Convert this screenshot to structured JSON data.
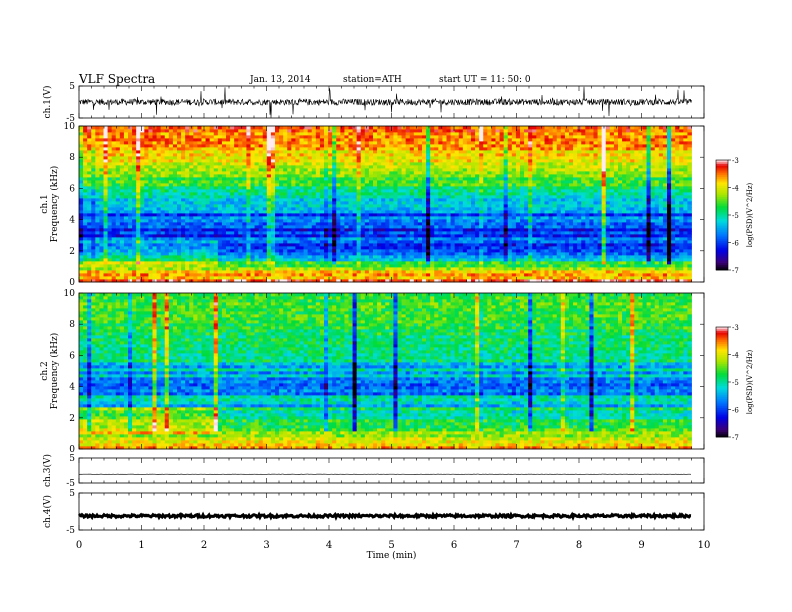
{
  "header": {
    "title": "VLF  Spectra",
    "date": "Jan. 13, 2014",
    "station": "station=ATH",
    "start": "start  UT  =    11: 50: 0"
  },
  "chart_data": [
    {
      "type": "line",
      "name": "ch1-waveform",
      "ylabel": "ch.1(V)",
      "xlim": [
        0,
        10
      ],
      "ylim": [
        -5,
        5
      ],
      "yticks": [
        5,
        -5
      ],
      "trace": {
        "baseline": 0,
        "typical_amplitude": 1,
        "spike_max": 5,
        "end_min": 9.8
      }
    },
    {
      "type": "heatmap",
      "name": "ch1-spectrogram",
      "ylabel_channel": "ch.1",
      "ylabel": "Frequency  (kHz)",
      "xlim": [
        0,
        10
      ],
      "ylim": [
        0,
        10
      ],
      "yticks": [
        0,
        2,
        4,
        6,
        8,
        10
      ],
      "colorbar": {
        "label": "log(PSD)(V^2/Hz)",
        "min": -7,
        "max": -3,
        "ticks": [
          -3,
          -4,
          -5,
          -6,
          -7
        ]
      },
      "data_end_min": 9.8,
      "regime_change_min": 2.2,
      "profile_khz_logpsd": [
        [
          0.0,
          -3.4
        ],
        [
          0.6,
          -3.5
        ],
        [
          1.0,
          -4.2
        ],
        [
          1.5,
          -5.2
        ],
        [
          2.0,
          -5.8
        ],
        [
          3.0,
          -6.0
        ],
        [
          4.0,
          -5.9
        ],
        [
          5.0,
          -5.5
        ],
        [
          6.0,
          -4.8
        ],
        [
          7.0,
          -4.3
        ],
        [
          8.0,
          -3.9
        ],
        [
          9.0,
          -3.6
        ],
        [
          10.0,
          -3.5
        ]
      ]
    },
    {
      "type": "heatmap",
      "name": "ch2-spectrogram",
      "ylabel_channel": "ch.2",
      "ylabel": "Frequency  (kHz)",
      "xlim": [
        0,
        10
      ],
      "ylim": [
        0,
        10
      ],
      "yticks": [
        0,
        2,
        4,
        6,
        8,
        10
      ],
      "colorbar": {
        "label": "log(PSD)(V^2/Hz)",
        "min": -7,
        "max": -3,
        "ticks": [
          -3,
          -4,
          -5,
          -6,
          -7
        ]
      },
      "data_end_min": 9.8,
      "regime_change_min": 2.2,
      "profile_khz_logpsd": [
        [
          0.0,
          -3.6
        ],
        [
          0.7,
          -3.8
        ],
        [
          1.0,
          -4.3
        ],
        [
          2.0,
          -4.7
        ],
        [
          3.0,
          -5.3
        ],
        [
          4.0,
          -5.6
        ],
        [
          5.0,
          -5.3
        ],
        [
          6.0,
          -5.0
        ],
        [
          7.0,
          -4.8
        ],
        [
          8.0,
          -4.7
        ],
        [
          9.0,
          -4.6
        ],
        [
          10.0,
          -4.6
        ]
      ]
    },
    {
      "type": "line",
      "name": "ch3-waveform",
      "ylabel": "ch.3(V)",
      "xlim": [
        0,
        10
      ],
      "ylim": [
        -5,
        5
      ],
      "yticks": [
        5,
        -5
      ],
      "trace": {
        "baseline": -1.5,
        "typical_amplitude": 0.05,
        "end_min": 9.8
      }
    },
    {
      "type": "line",
      "name": "ch4-waveform",
      "ylabel": "ch.4(V)",
      "xlim": [
        0,
        10
      ],
      "ylim": [
        -5,
        5
      ],
      "yticks": [
        5,
        -5
      ],
      "trace": {
        "baseline": -1.2,
        "typical_amplitude": 0.35,
        "end_min": 9.8
      }
    }
  ],
  "xaxis": {
    "label": "Time  (min)",
    "ticks": [
      0,
      1,
      2,
      3,
      4,
      5,
      6,
      7,
      8,
      9,
      10
    ]
  }
}
